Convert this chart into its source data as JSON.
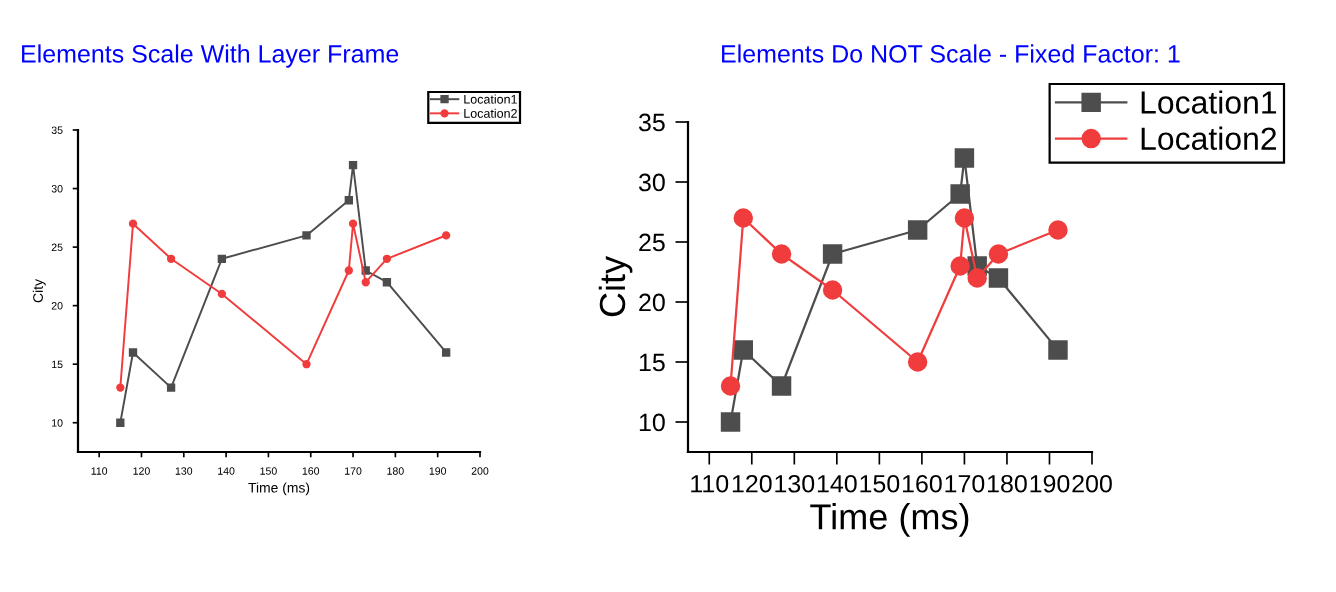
{
  "chart_data": [
    {
      "type": "line",
      "title": "Elements Scale With Layer Frame",
      "xlabel": "Time (ms)",
      "ylabel": "City",
      "x": [
        115,
        118,
        127,
        139,
        159,
        169,
        170,
        173,
        178,
        192
      ],
      "series": [
        {
          "name": "Location1",
          "color": "#4d4d4d",
          "marker": "square",
          "values": [
            10,
            16,
            13,
            24,
            26,
            29,
            32,
            23,
            22,
            16
          ]
        },
        {
          "name": "Location2",
          "color": "#f03c3c",
          "marker": "circle",
          "values": [
            13,
            27,
            24,
            21,
            15,
            23,
            27,
            22,
            24,
            26
          ]
        }
      ],
      "xlim": [
        105,
        200
      ],
      "ylim": [
        7.5,
        35
      ],
      "xticks": [
        110,
        120,
        130,
        140,
        150,
        160,
        170,
        180,
        190,
        200
      ],
      "yticks": [
        10,
        15,
        20,
        25,
        30,
        35
      ],
      "legend": "top right",
      "grid": false
    },
    {
      "type": "line",
      "title": "Elements Do NOT Scale - Fixed Factor: 1",
      "xlabel": "Time (ms)",
      "ylabel": "City",
      "x": [
        115,
        118,
        127,
        139,
        159,
        169,
        170,
        173,
        178,
        192
      ],
      "series": [
        {
          "name": "Location1",
          "color": "#4d4d4d",
          "marker": "square",
          "values": [
            10,
            16,
            13,
            24,
            26,
            29,
            32,
            23,
            22,
            16
          ]
        },
        {
          "name": "Location2",
          "color": "#f03c3c",
          "marker": "circle",
          "values": [
            13,
            27,
            24,
            21,
            15,
            23,
            27,
            22,
            24,
            26
          ]
        }
      ],
      "xlim": [
        105,
        200
      ],
      "ylim": [
        7.5,
        35
      ],
      "xticks": [
        110,
        120,
        130,
        140,
        150,
        160,
        170,
        180,
        190,
        200
      ],
      "yticks": [
        10,
        15,
        20,
        25,
        30,
        35
      ],
      "legend": "top right",
      "grid": false
    }
  ]
}
